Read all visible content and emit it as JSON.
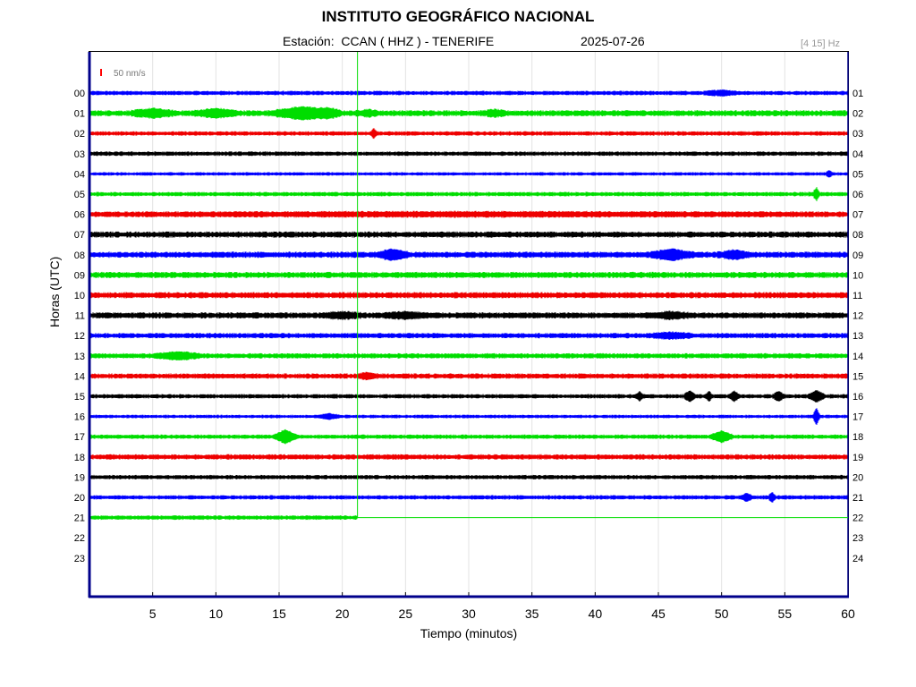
{
  "header": {
    "title": "INSTITUTO GEOGRÁFICO NACIONAL",
    "station": "Estación:  CCAN ( HHZ ) - TENERIFE",
    "date": "2025-07-26",
    "filter": "[4 15] Hz"
  },
  "chart_data": {
    "type": "line",
    "title": "INSTITUTO GEOGRÁFICO NACIONAL",
    "xlabel": "Tiempo (minutos)",
    "ylabel": "Horas (UTC)",
    "xlim": [
      0,
      60
    ],
    "x_ticks": [
      5,
      10,
      15,
      20,
      25,
      30,
      35,
      40,
      45,
      50,
      55,
      60
    ],
    "left_hour_labels": [
      "00",
      "01",
      "02",
      "03",
      "04",
      "05",
      "06",
      "07",
      "08",
      "09",
      "10",
      "11",
      "12",
      "13",
      "14",
      "15",
      "16",
      "17",
      "18",
      "19",
      "20",
      "21",
      "22",
      "23"
    ],
    "right_hour_labels": [
      "01",
      "02",
      "03",
      "04",
      "05",
      "06",
      "07",
      "08",
      "09",
      "10",
      "11",
      "12",
      "13",
      "14",
      "15",
      "16",
      "17",
      "18",
      "19",
      "20",
      "21",
      "22",
      "23",
      "24"
    ],
    "scale_label": "50 nm/s",
    "current_time_minute": 21.2,
    "grid": true,
    "colors": [
      "#0000ff",
      "#00dd00",
      "#ee0000",
      "#000000"
    ],
    "scale_color": "#ff0000",
    "marker_color": "#00dd00",
    "traces": [
      {
        "hour": 0,
        "amplitude": 2.5,
        "end": 60,
        "events": [
          [
            50,
            1.5,
            2
          ]
        ]
      },
      {
        "hour": 1,
        "amplitude": 3.5,
        "end": 60,
        "events": [
          [
            5,
            2,
            3
          ],
          [
            10,
            2,
            3
          ],
          [
            17,
            3,
            5
          ],
          [
            19,
            1,
            2
          ],
          [
            22,
            1,
            2
          ],
          [
            32,
            1,
            2
          ]
        ]
      },
      {
        "hour": 2,
        "amplitude": 2.5,
        "end": 60,
        "events": [
          [
            22.5,
            0.3,
            4
          ]
        ]
      },
      {
        "hour": 3,
        "amplitude": 2.5,
        "end": 60,
        "events": []
      },
      {
        "hour": 4,
        "amplitude": 2.0,
        "end": 60,
        "events": [
          [
            58.5,
            0.3,
            3
          ]
        ]
      },
      {
        "hour": 5,
        "amplitude": 2.5,
        "end": 60,
        "events": [
          [
            57.5,
            0.3,
            6
          ]
        ]
      },
      {
        "hour": 6,
        "amplitude": 3.0,
        "end": 60,
        "events": [
          [
            30,
            40,
            1
          ]
        ]
      },
      {
        "hour": 7,
        "amplitude": 3.5,
        "end": 60,
        "events": []
      },
      {
        "hour": 8,
        "amplitude": 3.5,
        "end": 60,
        "events": [
          [
            24,
            1.5,
            4
          ],
          [
            46,
            2,
            4
          ],
          [
            51,
            1.5,
            3
          ]
        ]
      },
      {
        "hour": 9,
        "amplitude": 3.5,
        "end": 60,
        "events": []
      },
      {
        "hour": 10,
        "amplitude": 3.5,
        "end": 60,
        "events": []
      },
      {
        "hour": 11,
        "amplitude": 3.5,
        "end": 60,
        "events": [
          [
            20,
            2,
            2
          ],
          [
            25,
            2,
            2
          ],
          [
            46,
            2,
            2
          ]
        ]
      },
      {
        "hour": 12,
        "amplitude": 3.0,
        "end": 60,
        "events": [
          [
            46,
            2,
            2
          ]
        ]
      },
      {
        "hour": 13,
        "amplitude": 3.0,
        "end": 60,
        "events": [
          [
            7,
            2,
            3
          ]
        ]
      },
      {
        "hour": 14,
        "amplitude": 3.0,
        "end": 60,
        "events": [
          [
            22,
            1,
            2
          ]
        ]
      },
      {
        "hour": 15,
        "amplitude": 2.5,
        "end": 60,
        "events": [
          [
            43.5,
            0.3,
            4
          ],
          [
            47.5,
            0.5,
            5
          ],
          [
            49,
            0.3,
            4
          ],
          [
            51,
            0.5,
            4
          ],
          [
            54.5,
            0.5,
            4
          ],
          [
            57.5,
            0.7,
            5
          ]
        ]
      },
      {
        "hour": 16,
        "amplitude": 2.0,
        "end": 60,
        "events": [
          [
            19,
            1,
            2
          ],
          [
            57.5,
            0.3,
            8
          ]
        ]
      },
      {
        "hour": 17,
        "amplitude": 2.5,
        "end": 60,
        "events": [
          [
            15.5,
            1,
            6
          ],
          [
            50,
            1,
            5
          ]
        ]
      },
      {
        "hour": 18,
        "amplitude": 3.0,
        "end": 60,
        "events": []
      },
      {
        "hour": 19,
        "amplitude": 2.5,
        "end": 60,
        "events": []
      },
      {
        "hour": 20,
        "amplitude": 2.5,
        "end": 60,
        "events": [
          [
            52,
            0.5,
            3
          ],
          [
            54,
            0.3,
            4
          ]
        ]
      },
      {
        "hour": 21,
        "amplitude": 2.5,
        "end": 21.2,
        "events": []
      }
    ]
  }
}
